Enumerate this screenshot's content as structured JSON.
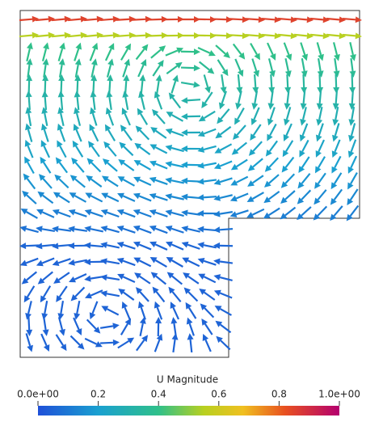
{
  "colorbar": {
    "title": "U Magnitude",
    "range": [
      0,
      1
    ],
    "ticks": [
      {
        "value": 0,
        "label": "0.0e+00"
      },
      0.2,
      0.4,
      0.6,
      0.8,
      {
        "value": 1,
        "label": "1.0e+00"
      }
    ]
  }
}
